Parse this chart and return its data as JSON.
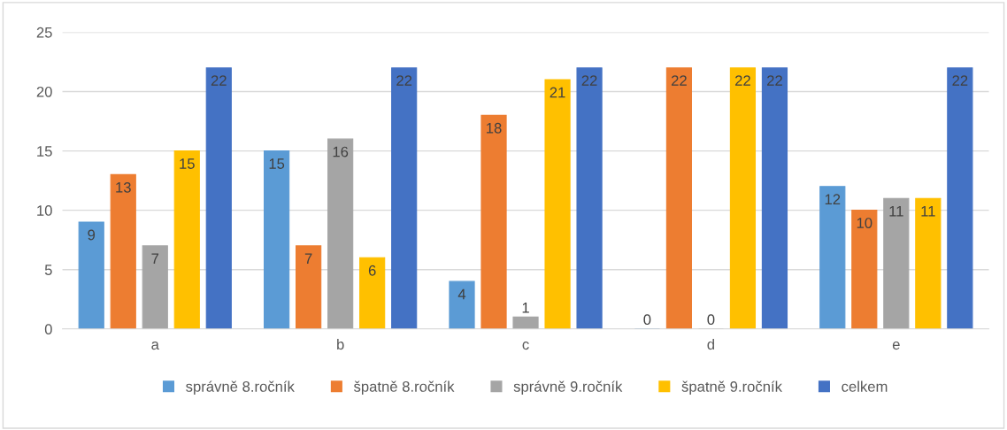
{
  "chart_data": {
    "type": "bar",
    "categories": [
      "a",
      "b",
      "c",
      "d",
      "e"
    ],
    "series": [
      {
        "name": "správně 8.ročník",
        "color": "#5b9bd5",
        "values": [
          9,
          15,
          4,
          0,
          12
        ]
      },
      {
        "name": "špatně 8.ročník",
        "color": "#ed7d31",
        "values": [
          13,
          7,
          18,
          22,
          10
        ]
      },
      {
        "name": "správně 9.ročník",
        "color": "#a5a5a5",
        "values": [
          7,
          16,
          1,
          0,
          11
        ]
      },
      {
        "name": "špatně 9.ročník",
        "color": "#ffc000",
        "values": [
          15,
          6,
          21,
          22,
          11
        ]
      },
      {
        "name": "celkem",
        "color": "#4472c4",
        "values": [
          22,
          22,
          22,
          22,
          22
        ]
      }
    ],
    "ylim": [
      0,
      25
    ],
    "yticks": [
      0,
      5,
      10,
      15,
      20,
      25
    ],
    "grid": "y",
    "legend": "bottom",
    "data_labels": true
  }
}
